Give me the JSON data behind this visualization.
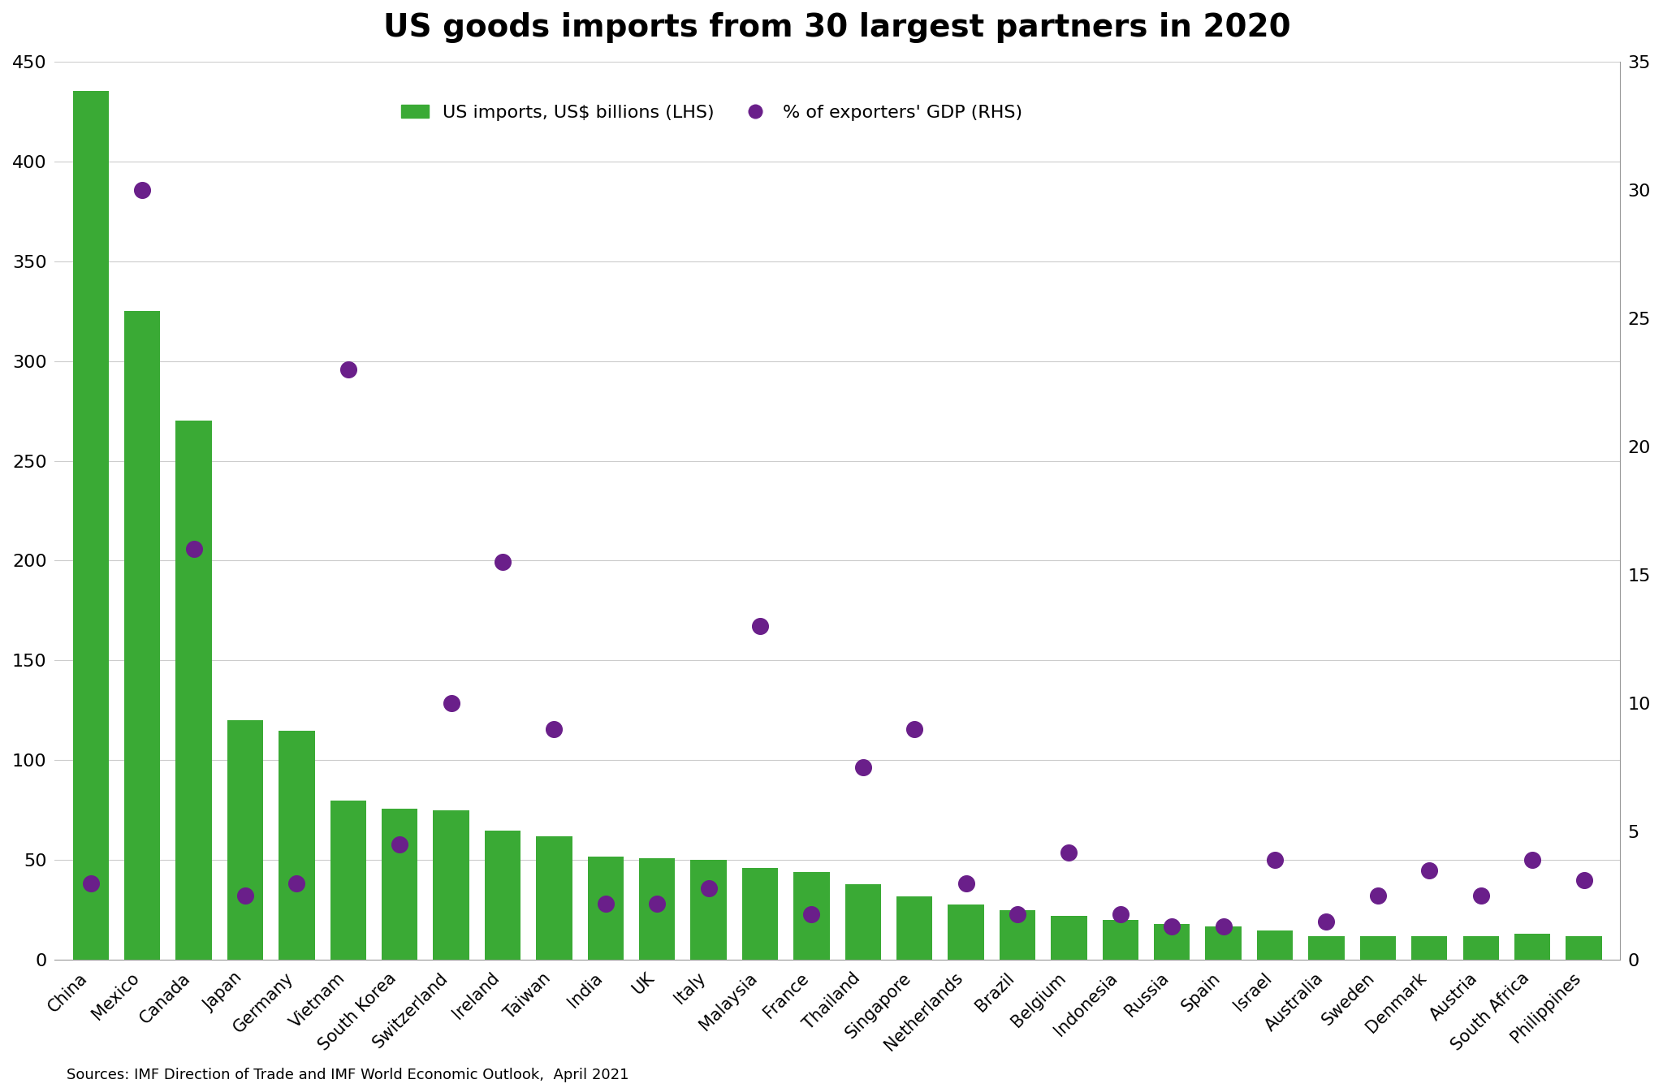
{
  "title": "US goods imports from 30 largest partners in 2020",
  "source": "Sources: IMF Direction of Trade and IMF World Economic Outlook,  April 2021",
  "countries": [
    "China",
    "Mexico",
    "Canada",
    "Japan",
    "Germany",
    "Vietnam",
    "South Korea",
    "Switzerland",
    "Ireland",
    "Taiwan",
    "India",
    "UK",
    "Italy",
    "Malaysia",
    "France",
    "Thailand",
    "Singapore",
    "Netherlands",
    "Brazil",
    "Belgium",
    "Indonesia",
    "Russia",
    "Spain",
    "Israel",
    "Australia",
    "Sweden",
    "Denmark",
    "Austria",
    "South Africa",
    "Philippines"
  ],
  "imports_bn": [
    435,
    325,
    270,
    120,
    115,
    80,
    76,
    75,
    65,
    62,
    52,
    51,
    50,
    46,
    44,
    38,
    32,
    28,
    25,
    22,
    20,
    18,
    17,
    15,
    12,
    12,
    12,
    12,
    13,
    12
  ],
  "pct_gdp": [
    3.0,
    30.0,
    16.0,
    2.5,
    3.0,
    23.0,
    4.5,
    10.0,
    15.5,
    9.0,
    2.2,
    2.2,
    2.8,
    13.0,
    1.8,
    7.5,
    9.0,
    3.0,
    1.8,
    4.2,
    1.8,
    1.3,
    1.3,
    3.9,
    1.5,
    2.5,
    3.5,
    2.5,
    3.9,
    3.1
  ],
  "bar_color": "#3aaa35",
  "dot_color": "#6a1f8a",
  "background_color": "#ffffff",
  "plot_bg_color": "#f0f0f0",
  "lhs_ylim": [
    0,
    450
  ],
  "rhs_ylim": [
    0,
    35
  ],
  "lhs_yticks": [
    0,
    50,
    100,
    150,
    200,
    250,
    300,
    350,
    400,
    450
  ],
  "rhs_yticks": [
    0,
    5,
    10,
    15,
    20,
    25,
    30,
    35
  ],
  "legend_bar": "US imports, US$ billions (LHS)",
  "legend_dot": "% of exporters' GDP (RHS)"
}
